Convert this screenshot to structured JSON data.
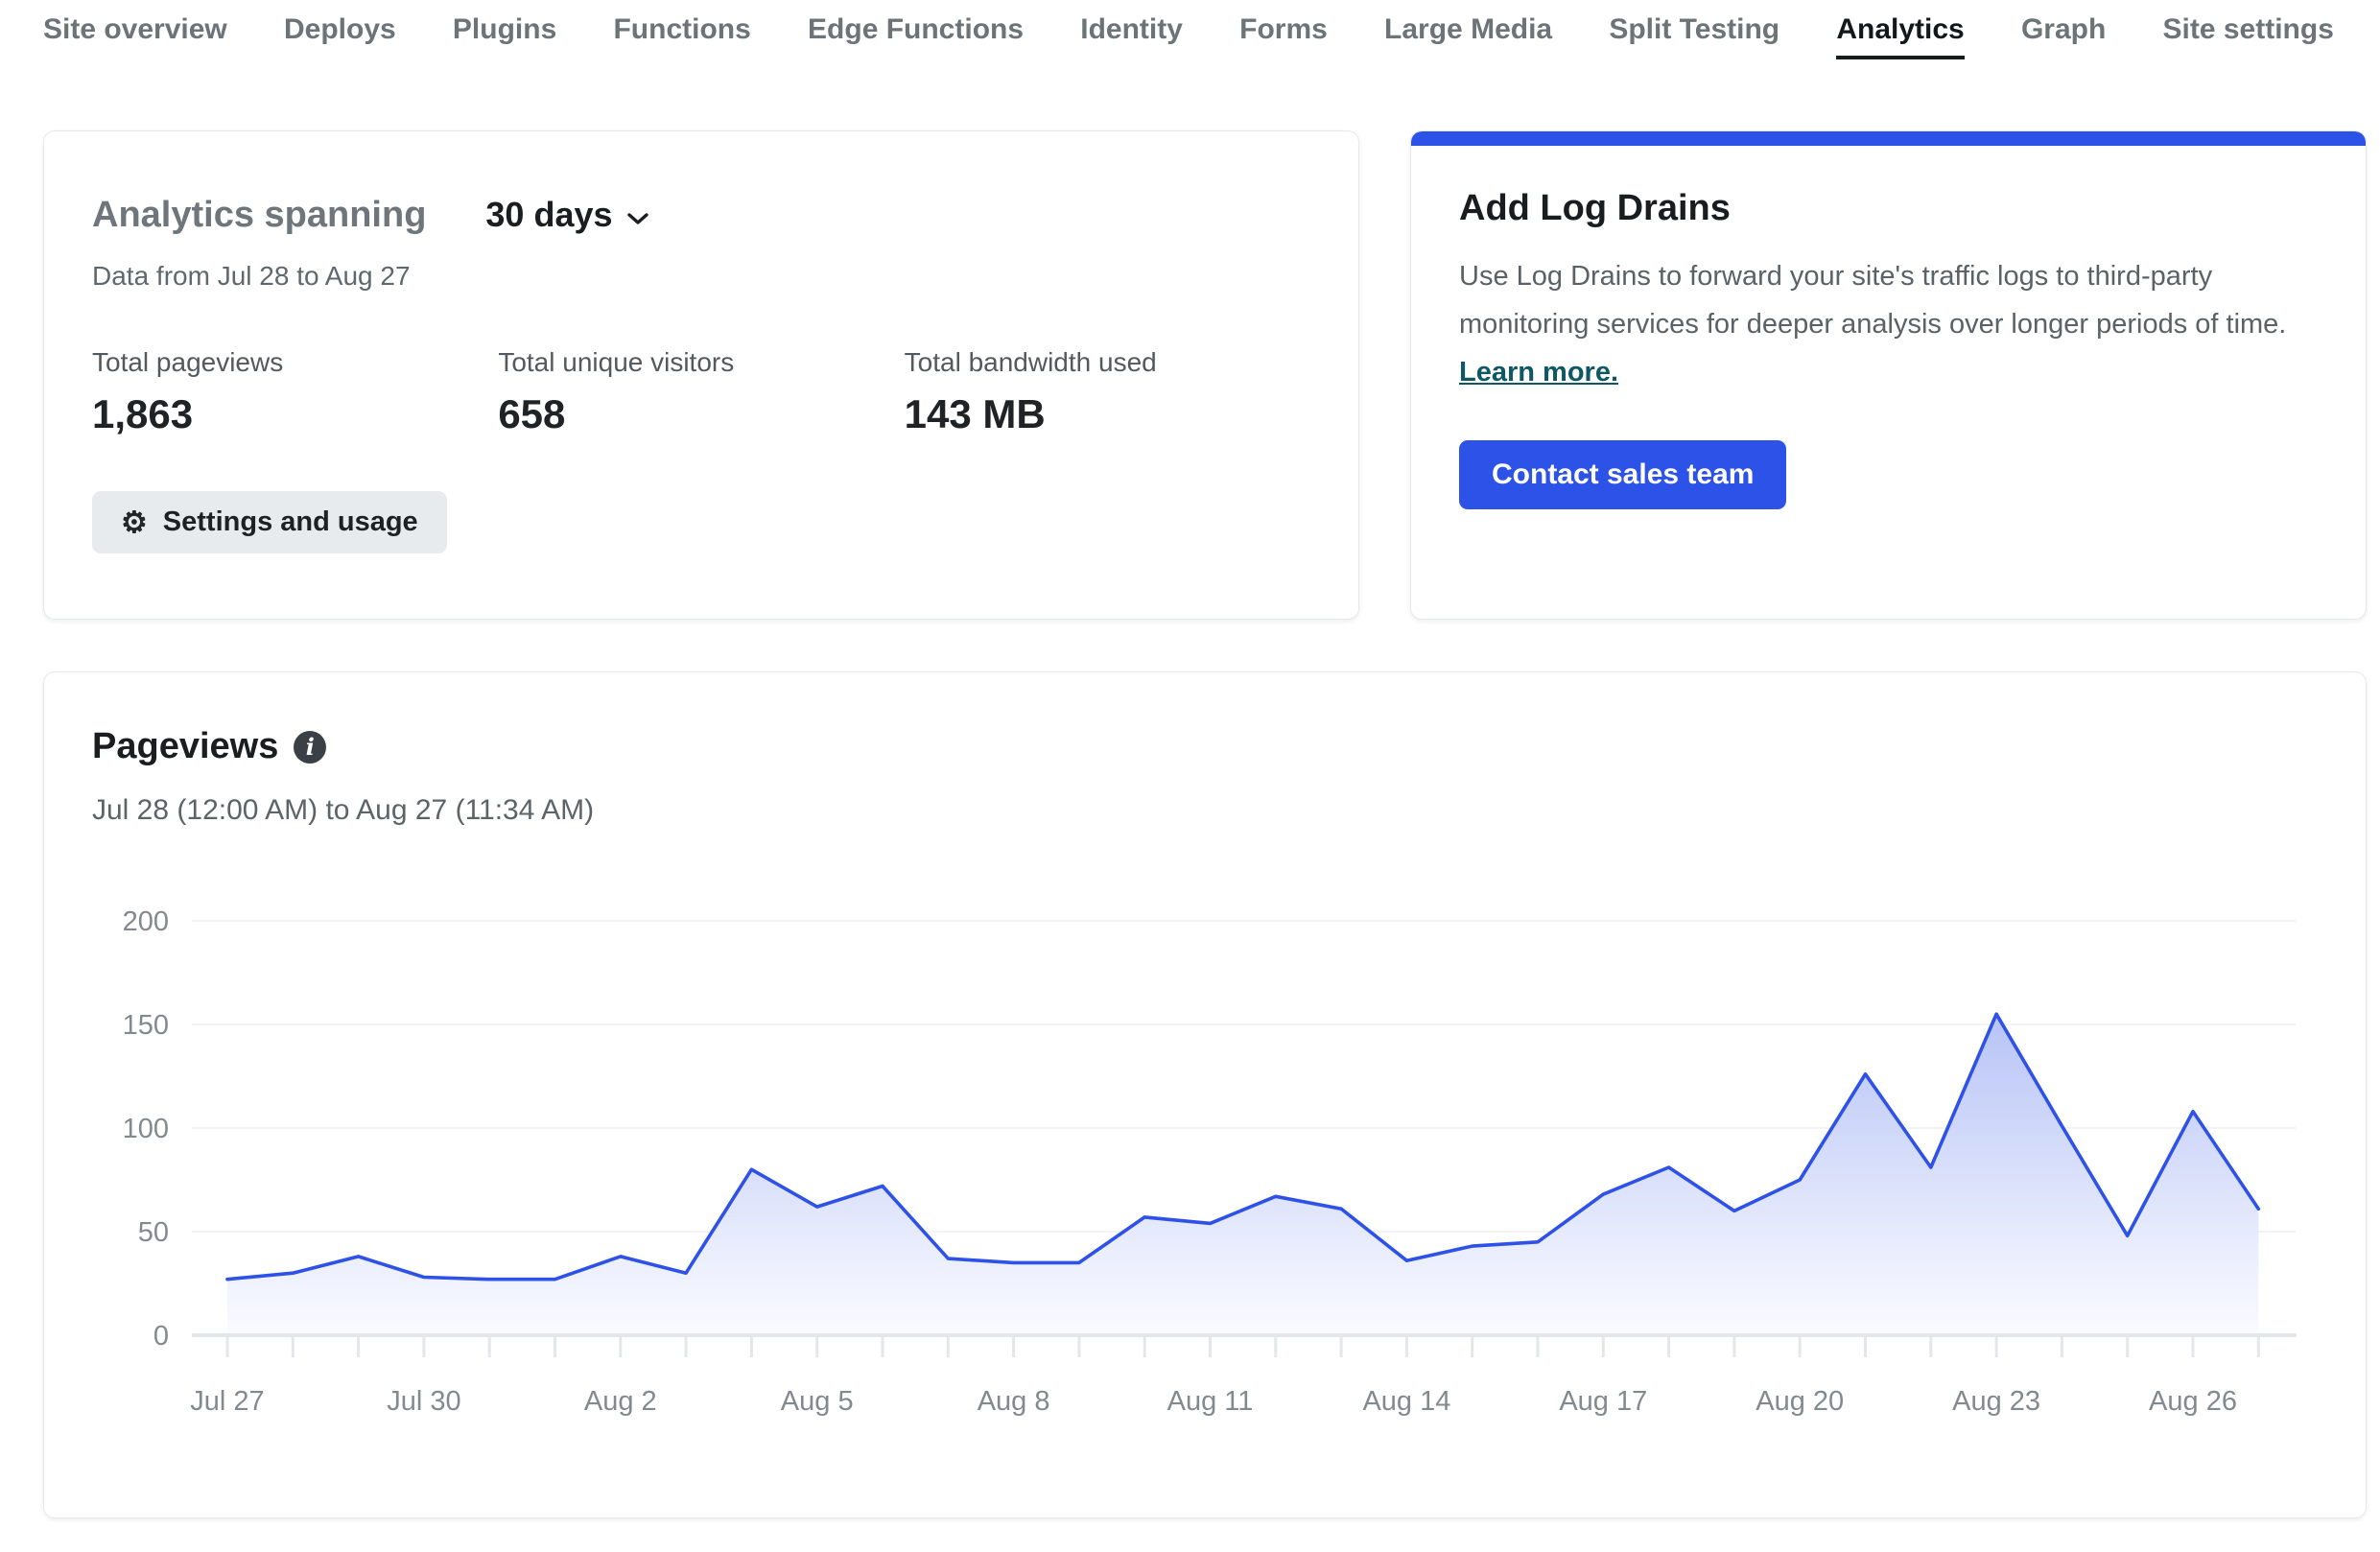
{
  "nav": {
    "items": [
      {
        "label": "Site overview",
        "active": false
      },
      {
        "label": "Deploys",
        "active": false
      },
      {
        "label": "Plugins",
        "active": false
      },
      {
        "label": "Functions",
        "active": false
      },
      {
        "label": "Edge Functions",
        "active": false
      },
      {
        "label": "Identity",
        "active": false
      },
      {
        "label": "Forms",
        "active": false
      },
      {
        "label": "Large Media",
        "active": false
      },
      {
        "label": "Split Testing",
        "active": false
      },
      {
        "label": "Analytics",
        "active": true
      },
      {
        "label": "Graph",
        "active": false
      },
      {
        "label": "Site settings",
        "active": false
      }
    ]
  },
  "analytics_summary": {
    "title": "Analytics spanning",
    "range_selector": {
      "value": "30 days"
    },
    "subtitle": "Data from Jul 28 to Aug 27",
    "stats": [
      {
        "label": "Total pageviews",
        "value": "1,863"
      },
      {
        "label": "Total unique visitors",
        "value": "658"
      },
      {
        "label": "Total bandwidth used",
        "value": "143 MB"
      }
    ],
    "settings_button": "Settings and usage"
  },
  "log_drains": {
    "accent_color": "#2d52e8",
    "title": "Add Log Drains",
    "description": "Use Log Drains to forward your site's traffic logs to third-party monitoring services for deeper analysis over longer periods of time.",
    "link_label": "Learn more.",
    "button_label": "Contact sales team"
  },
  "pageviews": {
    "title": "Pageviews",
    "subtitle": "Jul 28 (12:00 AM) to Aug 27 (11:34 AM)"
  },
  "chart_data": {
    "type": "area",
    "title": "Pageviews",
    "xlabel": "",
    "ylabel": "",
    "x": [
      "Jul 27",
      "Jul 28",
      "Jul 29",
      "Jul 30",
      "Jul 31",
      "Aug 1",
      "Aug 2",
      "Aug 3",
      "Aug 4",
      "Aug 5",
      "Aug 6",
      "Aug 7",
      "Aug 8",
      "Aug 9",
      "Aug 10",
      "Aug 11",
      "Aug 12",
      "Aug 13",
      "Aug 14",
      "Aug 15",
      "Aug 16",
      "Aug 17",
      "Aug 18",
      "Aug 19",
      "Aug 20",
      "Aug 21",
      "Aug 22",
      "Aug 23",
      "Aug 24",
      "Aug 25",
      "Aug 26",
      "Aug 27"
    ],
    "values": [
      27,
      30,
      38,
      28,
      27,
      27,
      38,
      30,
      80,
      62,
      72,
      37,
      35,
      35,
      57,
      54,
      67,
      61,
      36,
      43,
      45,
      68,
      81,
      60,
      75,
      126,
      81,
      155,
      101,
      48,
      108,
      61
    ],
    "x_tick_labels": [
      "Jul 27",
      "Jul 30",
      "Aug 2",
      "Aug 5",
      "Aug 8",
      "Aug 11",
      "Aug 14",
      "Aug 17",
      "Aug 20",
      "Aug 23",
      "Aug 26"
    ],
    "x_labeled_every": 3,
    "y_ticks": [
      0,
      50,
      100,
      150,
      200
    ],
    "ylim": [
      0,
      220
    ],
    "grid": true,
    "legend": "none",
    "line_color": "#2e51e8",
    "fill_top_color": "#b3c0f5",
    "fill_bottom_color": "#fafbff",
    "axis_label_color": "#828a90",
    "axis_line_color": "#e4e7ea",
    "gridline_color": "#f1f3f5"
  }
}
